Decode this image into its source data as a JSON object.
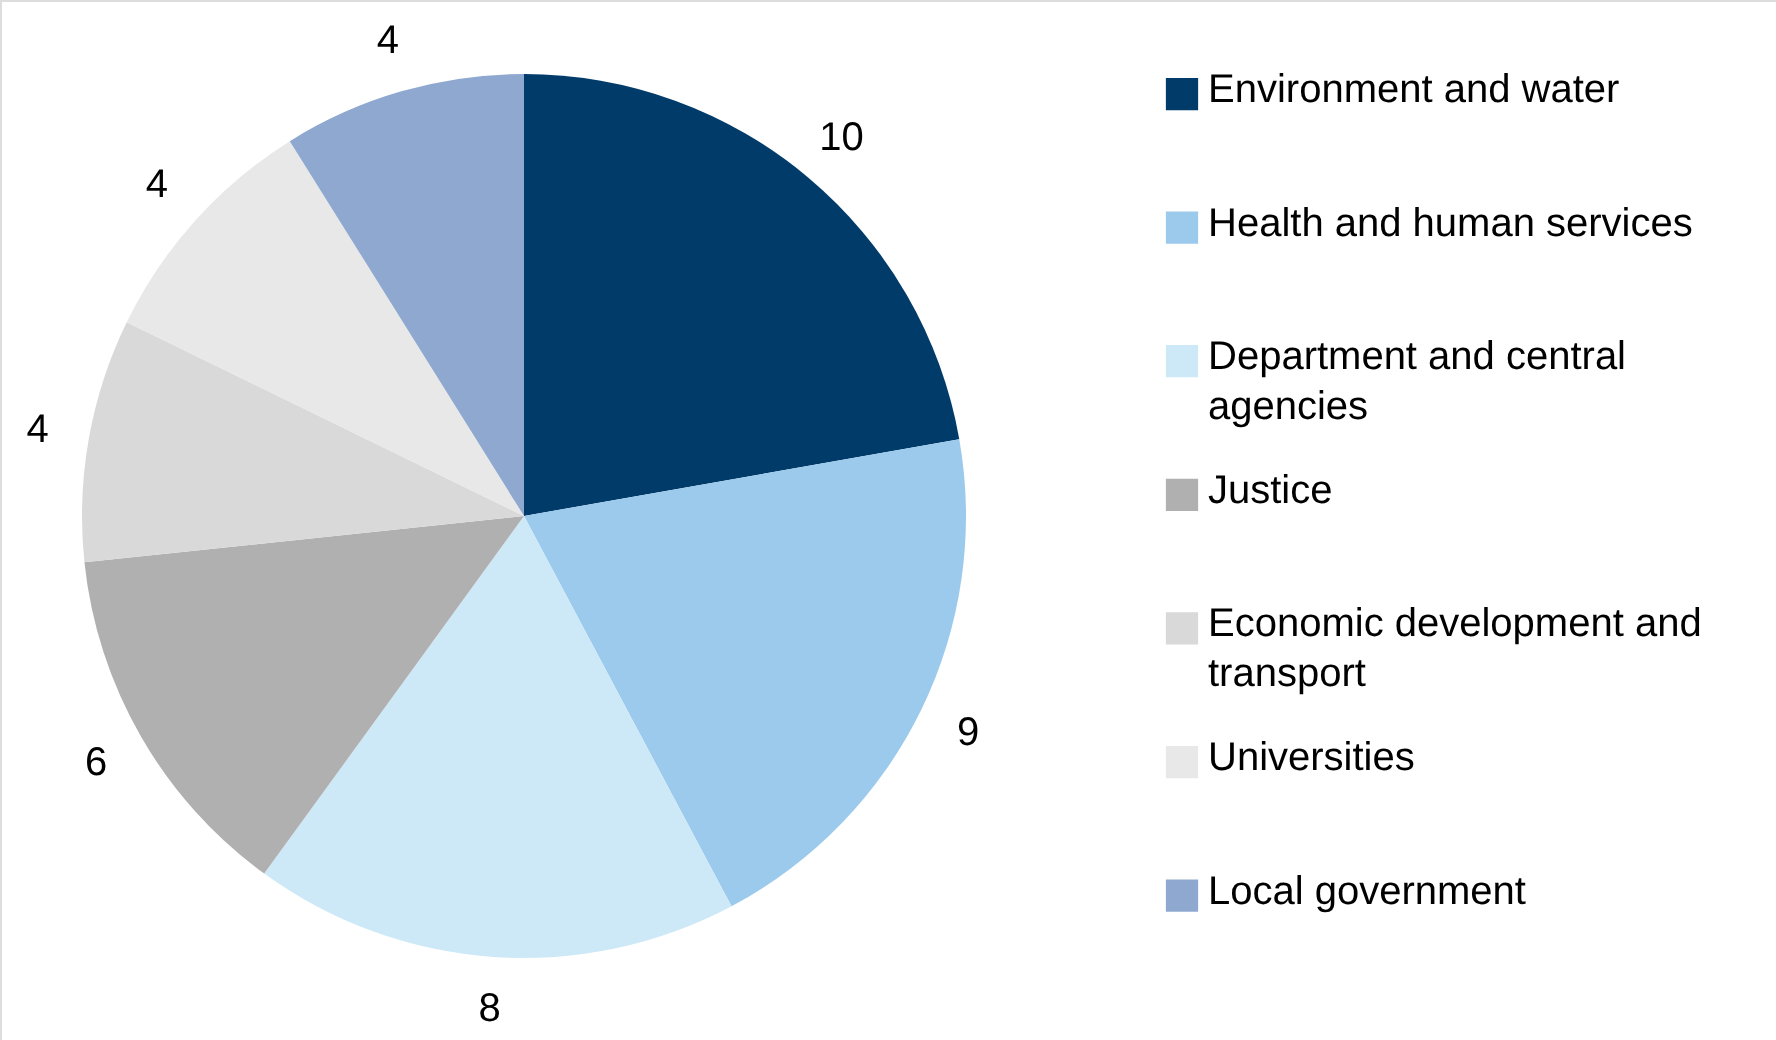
{
  "chart_data": {
    "type": "pie",
    "categories": [
      "Environment and water",
      "Health and human services",
      "Department and central agencies",
      "Justice",
      "Economic development and transport",
      "Universities",
      "Local government"
    ],
    "values": [
      10,
      9,
      8,
      6,
      4,
      4,
      4
    ],
    "colors": [
      "#003b6a",
      "#9ccaec",
      "#cde9f8",
      "#b0b0b0",
      "#d9d9d9",
      "#e8e8e8",
      "#8fa8d0"
    ],
    "data_labels": true,
    "legend": "right"
  }
}
